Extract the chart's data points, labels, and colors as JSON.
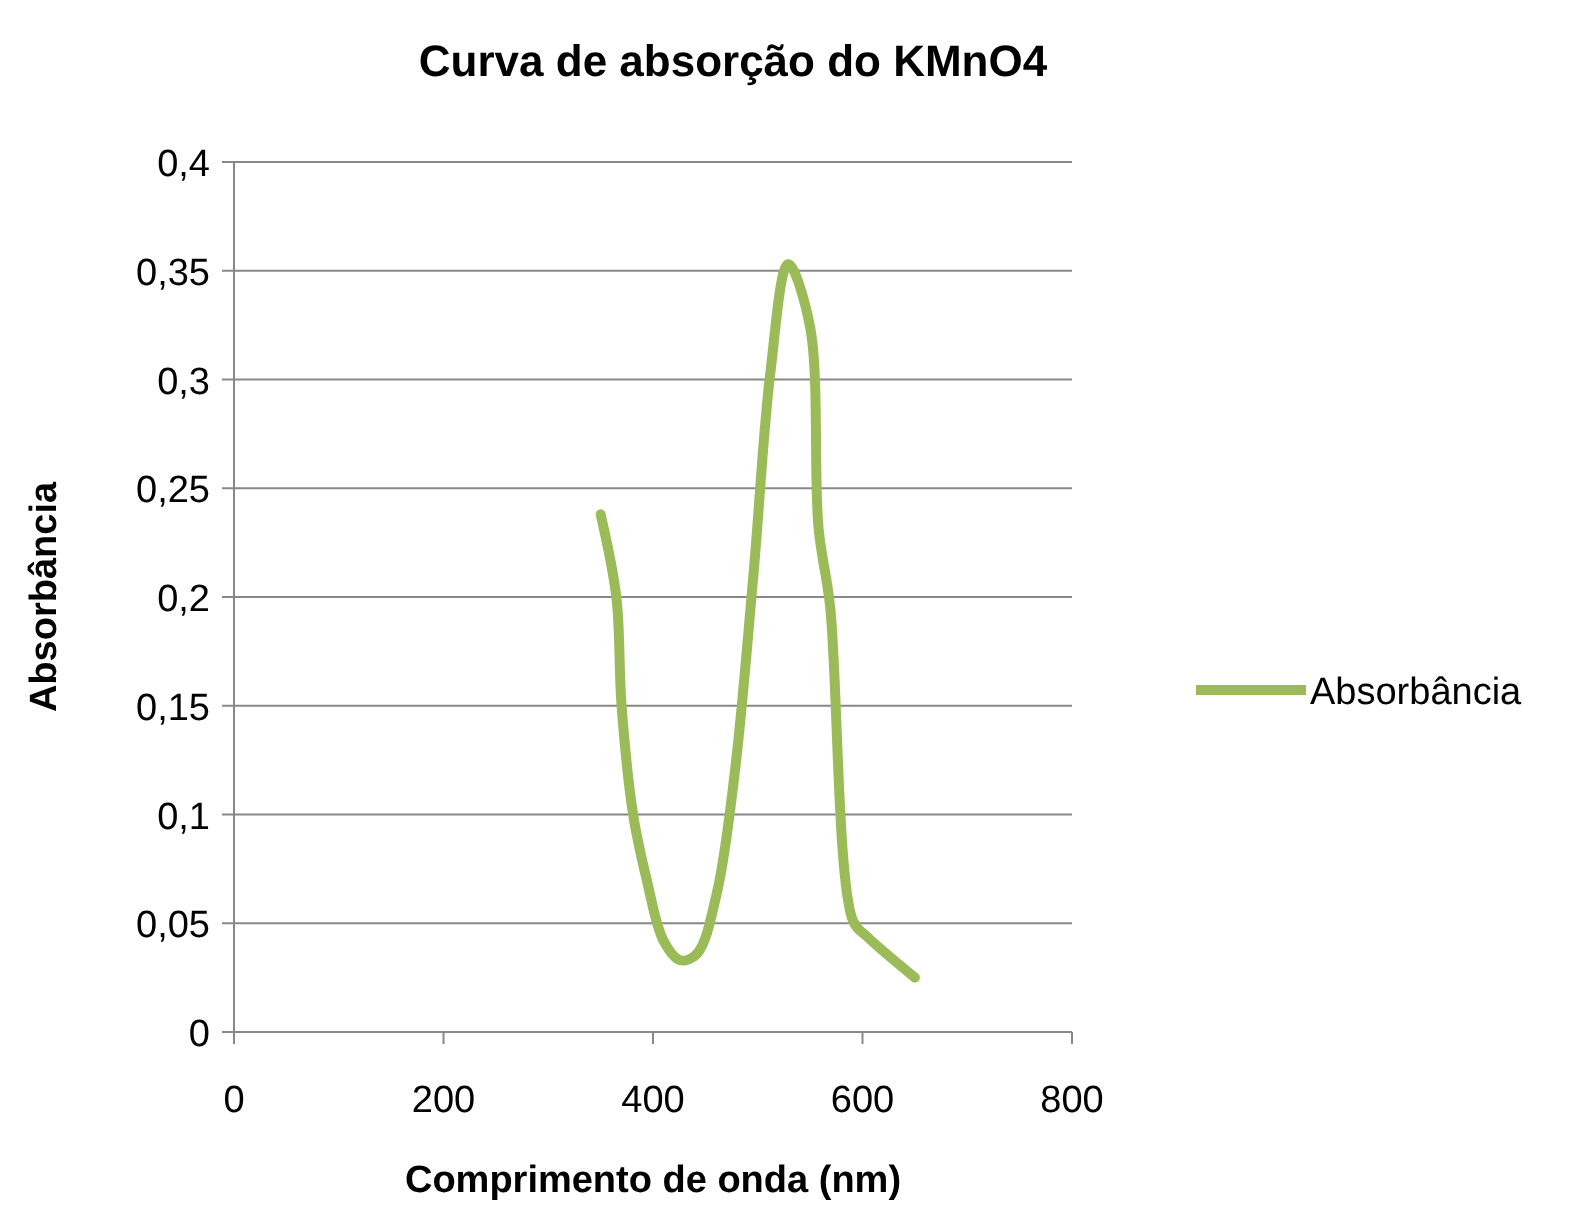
{
  "chart_data": {
    "type": "line",
    "title": "Curva de absorção do KMnO4",
    "xlabel": "Comprimento de onda (nm)",
    "ylabel": "Absorbância",
    "x": [
      350,
      365,
      370,
      381,
      394,
      410,
      426,
      442,
      461,
      478,
      496,
      512,
      529,
      550,
      558,
      569,
      591,
      604,
      650
    ],
    "series": [
      {
        "name": "Absorbância",
        "color": "#9bbb59",
        "values": [
          0.238,
          0.2,
          0.15,
          0.1,
          0.07,
          0.042,
          0.033,
          0.036,
          0.064,
          0.119,
          0.211,
          0.303,
          0.353,
          0.324,
          0.232,
          0.196,
          0.051,
          0.044,
          0.025
        ]
      }
    ],
    "xlim": [
      0,
      800
    ],
    "xticks": [
      0,
      200,
      400,
      600,
      800
    ],
    "ylim": [
      0,
      0.4
    ],
    "yticks": [
      {
        "value": 0,
        "label": "0"
      },
      {
        "value": 0.05,
        "label": "0,05"
      },
      {
        "value": 0.1,
        "label": "0,1"
      },
      {
        "value": 0.15,
        "label": "0,15"
      },
      {
        "value": 0.2,
        "label": "0,2"
      },
      {
        "value": 0.25,
        "label": "0,25"
      },
      {
        "value": 0.3,
        "label": "0,3"
      },
      {
        "value": 0.35,
        "label": "0,35"
      },
      {
        "value": 0.4,
        "label": "0,4"
      }
    ],
    "grid": "y",
    "legend": "right",
    "marker": "none",
    "line_style": "solid"
  }
}
